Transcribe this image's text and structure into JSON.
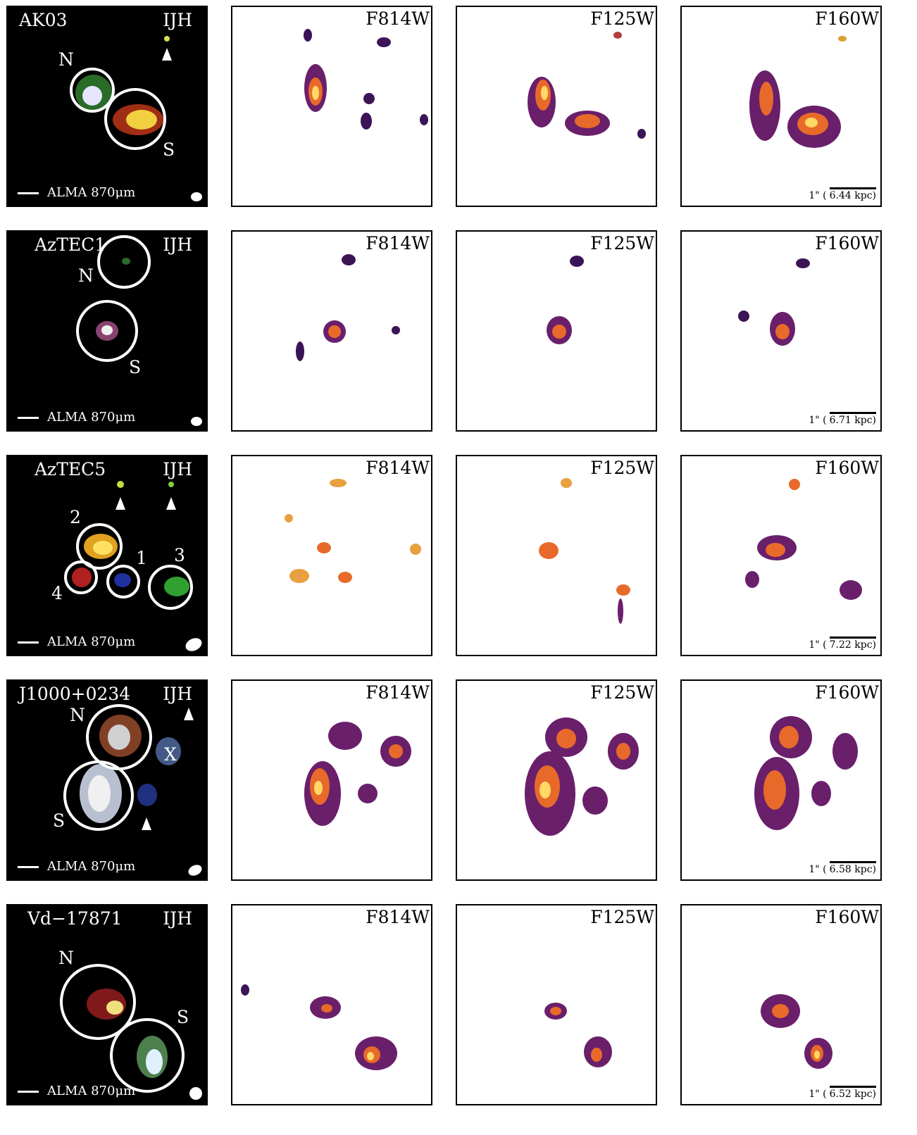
{
  "rows": [
    {
      "name": "AK03",
      "rgb_label": "IJH",
      "alma": "ALMA 870μm",
      "filters": [
        "F814W",
        "F125W",
        "F160W"
      ],
      "components": [
        "N",
        "S"
      ],
      "scale_arcsec": "1\"",
      "scale_kpc": "6.44 kpc)"
    },
    {
      "name": "AzTEC1",
      "rgb_label": "IJH",
      "alma": "ALMA 870μm",
      "filters": [
        "F814W",
        "F125W",
        "F160W"
      ],
      "components": [
        "N",
        "S"
      ],
      "scale_arcsec": "1\"",
      "scale_kpc": "6.71 kpc)"
    },
    {
      "name": "AzTEC5",
      "rgb_label": "IJH",
      "alma": "ALMA 870μm",
      "filters": [
        "F814W",
        "F125W",
        "F160W"
      ],
      "components": [
        "2",
        "1",
        "3",
        "4"
      ],
      "scale_arcsec": "1\"",
      "scale_kpc": "7.22 kpc)"
    },
    {
      "name": "J1000+0234",
      "rgb_label": "IJH",
      "alma": "ALMA 870μm",
      "filters": [
        "F814W",
        "F125W",
        "F160W"
      ],
      "components": [
        "N",
        "X",
        "S"
      ],
      "scale_arcsec": "1\"",
      "scale_kpc": "6.58 kpc)"
    },
    {
      "name": "Vd−17871",
      "rgb_label": "IJH",
      "alma": "ALMA 870μm",
      "filters": [
        "F814W",
        "F125W",
        "F160W"
      ],
      "components": [
        "N",
        "S"
      ],
      "scale_arcsec": "1\"",
      "scale_kpc": "6.52 kpc)"
    }
  ]
}
